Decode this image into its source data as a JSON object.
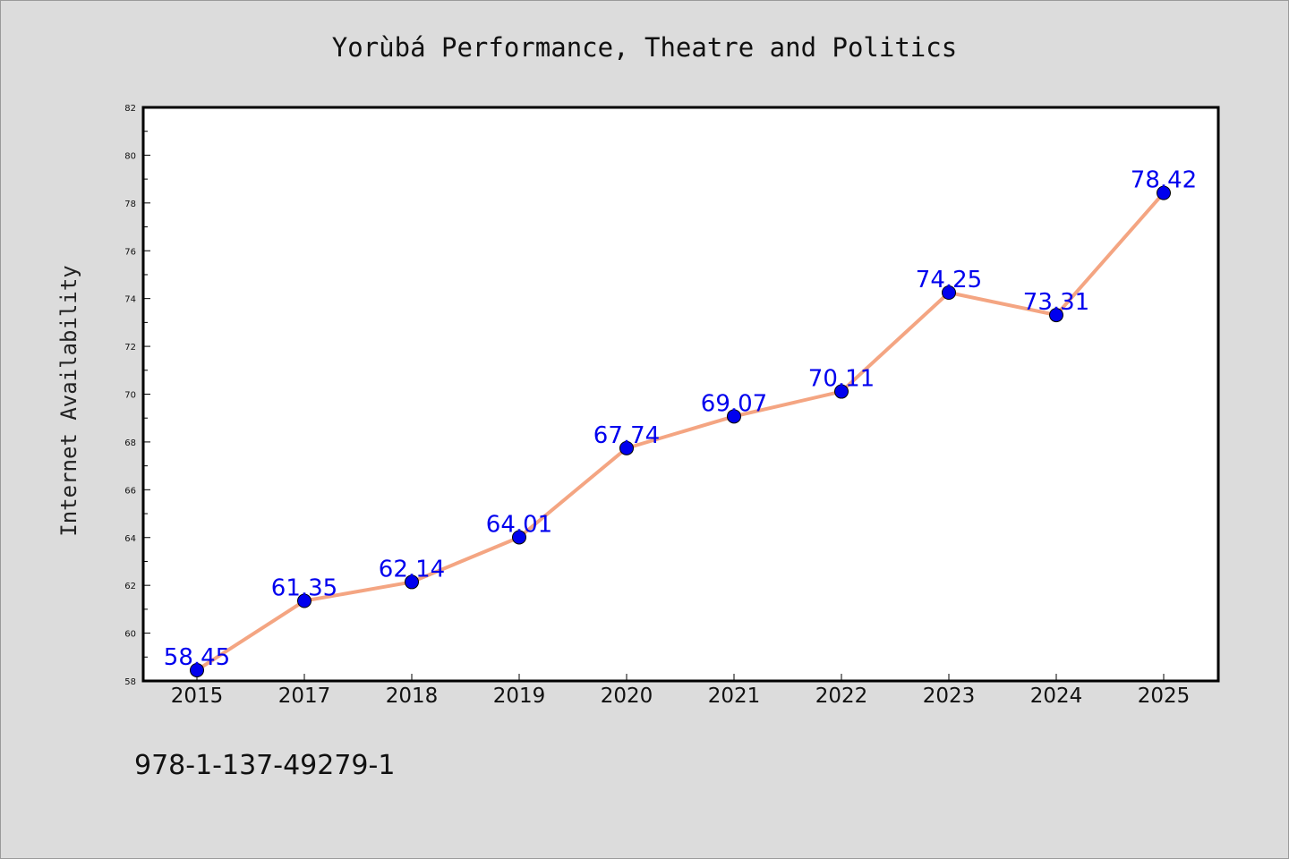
{
  "chart_data": {
    "type": "line",
    "title": "Yorùbá Performance, Theatre and Politics",
    "xlabel": "",
    "ylabel": "Internet Availability",
    "categories": [
      "2015",
      "2017",
      "2018",
      "2019",
      "2020",
      "2021",
      "2022",
      "2023",
      "2024",
      "2025"
    ],
    "series": [
      {
        "values": [
          58.45,
          61.35,
          62.14,
          64.01,
          67.74,
          69.07,
          70.11,
          74.25,
          73.31,
          78.42
        ],
        "labels": [
          "58.45",
          "61.35",
          "62.14",
          "64.01",
          "67.74",
          "69.07",
          "70.11",
          "74.25",
          "73.31",
          "78.42"
        ]
      }
    ],
    "ylim": [
      58,
      82
    ],
    "yticks": [
      58,
      60,
      62,
      64,
      66,
      68,
      70,
      72,
      74,
      76,
      78,
      80,
      82
    ],
    "ytick_labels": [
      "58",
      "60",
      "62",
      "64",
      "66",
      "68",
      "70",
      "72",
      "74",
      "76",
      "78",
      "80",
      "82"
    ],
    "grid": false,
    "legend": "none",
    "colors": {
      "line": "#f4a582",
      "marker": "#0000ee",
      "data_label": "#0000ee",
      "plot_background": "#ffffff",
      "page_background": "#dcdcdc"
    }
  },
  "footer": {
    "isbn": "978-1-137-49279-1"
  }
}
